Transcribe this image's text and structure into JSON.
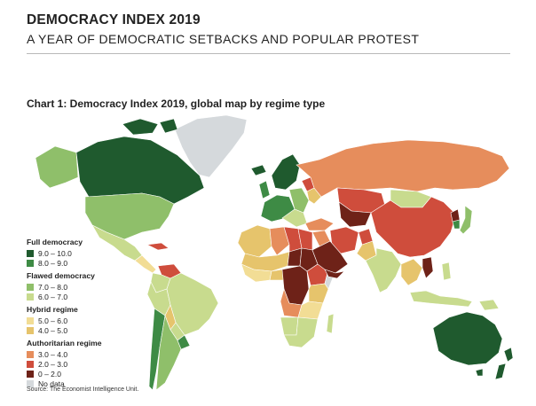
{
  "header": {
    "title": "DEMOCRACY INDEX 2019",
    "subtitle": "A YEAR OF DEMOCRATIC SETBACKS AND POPULAR PROTEST"
  },
  "chart": {
    "title": "Chart 1: Democracy Index 2019, global map by regime type"
  },
  "legend": {
    "full": {
      "label": "Full democracy",
      "items": [
        {
          "label": "9.0 – 10.0",
          "color": "#1f5a2e"
        },
        {
          "label": "8.0 – 9.0",
          "color": "#3e8b45"
        }
      ]
    },
    "flawed": {
      "label": "Flawed democracy",
      "items": [
        {
          "label": "7.0 – 8.0",
          "color": "#8fbf6a"
        },
        {
          "label": "6.0 – 7.0",
          "color": "#c8db8e"
        }
      ]
    },
    "hybrid": {
      "label": "Hybrid regime",
      "items": [
        {
          "label": "5.0 – 6.0",
          "color": "#f2dd95"
        },
        {
          "label": "4.0 – 5.0",
          "color": "#e6c46c"
        }
      ]
    },
    "authoritarian": {
      "label": "Authoritarian regime",
      "items": [
        {
          "label": "3.0 – 4.0",
          "color": "#e68d5c"
        },
        {
          "label": "2.0 – 3.0",
          "color": "#cf4d3c"
        },
        {
          "label": "0 – 2.0",
          "color": "#6e2218"
        }
      ]
    },
    "nodata": {
      "label": "No data",
      "color": "#d5d9dc"
    }
  },
  "source": "Source: The Economist Intelligence Unit."
}
